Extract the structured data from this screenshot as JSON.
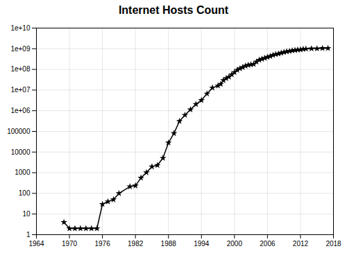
{
  "chart_data": {
    "type": "line",
    "title": "Internet Hosts Count",
    "marker": "star",
    "log": "y",
    "grid": true,
    "xlim": [
      1964,
      2018
    ],
    "ylim": [
      1,
      10000000000
    ],
    "xticks": [
      1964,
      1970,
      1976,
      1982,
      1988,
      1994,
      2000,
      2006,
      2012,
      2018
    ],
    "yticks": [
      1,
      10,
      100,
      1000,
      10000,
      100000,
      {
        "value": 1000000,
        "label": "1e+06"
      },
      {
        "value": 10000000,
        "label": "1e+07"
      },
      {
        "value": 100000000,
        "label": "1e+08"
      },
      {
        "value": 1000000000,
        "label": "1e+09"
      },
      {
        "value": 10000000000,
        "label": "1e+10"
      }
    ],
    "x": [
      1969,
      1970,
      1971,
      1972,
      1973,
      1974,
      1975,
      1976,
      1977,
      1978,
      1979,
      1981,
      1982,
      1983,
      1984,
      1985,
      1986,
      1987,
      1988,
      1989,
      1990,
      1991,
      1992,
      1993,
      1994,
      1995,
      1996,
      1997,
      1997.5,
      1998,
      1998.5,
      1999,
      1999.5,
      2000,
      2000.5,
      2001,
      2001.5,
      2002,
      2002.5,
      2003,
      2003.5,
      2004,
      2004.5,
      2005,
      2005.5,
      2006,
      2006.5,
      2007,
      2007.5,
      2008,
      2008.5,
      2009,
      2009.5,
      2010,
      2010.5,
      2011,
      2011.5,
      2012,
      2012.5,
      2013,
      2014,
      2015,
      2016,
      2017
    ],
    "values": [
      4,
      2,
      2,
      2,
      2,
      2,
      2,
      30,
      40,
      50,
      100,
      213,
      235,
      562,
      1024,
      1961,
      2308,
      5089,
      28174,
      80000,
      313000,
      617000,
      1136000,
      2056000,
      3212000,
      6642000,
      12881000,
      16146000,
      19540000,
      29670000,
      36739000,
      43230000,
      56218000,
      72398092,
      93047785,
      109574429,
      125888197,
      147344723,
      162128493,
      171638297,
      179138014,
      233101481,
      285139107,
      317646084,
      353284187,
      394991609,
      433193046,
      489774269,
      541677360,
      570937778,
      625226456,
      681064561,
      732740754,
      768913036,
      818374269,
      849869781,
      888239420,
      910482249,
      961000000,
      990000000,
      1010000000,
      1020000000,
      1050000000,
      1060000000
    ]
  }
}
